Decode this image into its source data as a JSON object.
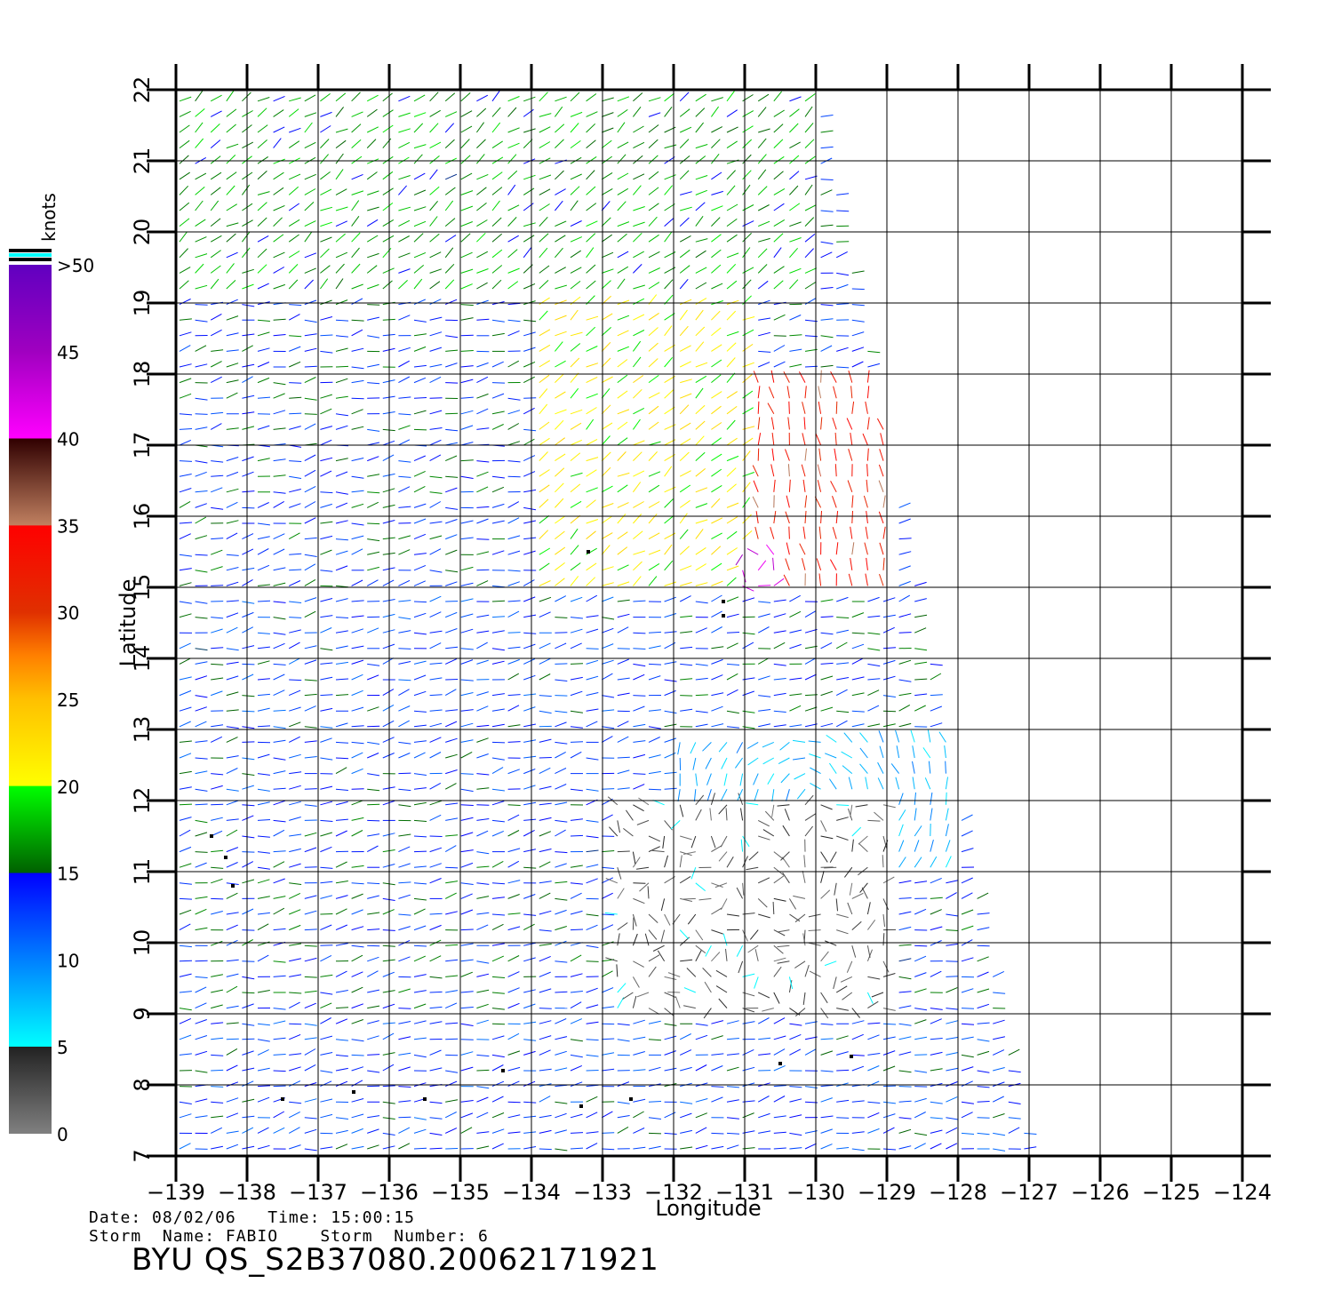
{
  "chart_data": {
    "type": "wind-vector-map",
    "xlabel": "Longitude",
    "ylabel": "Latitude",
    "xlim": [
      -139,
      -124
    ],
    "ylim": [
      7,
      22
    ],
    "x_ticks": [
      -139,
      -138,
      -137,
      -136,
      -135,
      -134,
      -133,
      -132,
      -131,
      -130,
      -129,
      -128,
      -127,
      -126,
      -125,
      -124
    ],
    "y_ticks": [
      7,
      8,
      9,
      10,
      11,
      12,
      13,
      14,
      15,
      16,
      17,
      18,
      19,
      20,
      21,
      22
    ],
    "x_tick_labels": [
      "−139",
      "−138",
      "−137",
      "−136",
      "−135",
      "−134",
      "−133",
      "−132",
      "−131",
      "−130",
      "−129",
      "−128",
      "−127",
      "−126",
      "−125",
      "−124"
    ],
    "y_tick_labels": [
      "7",
      "8",
      "9",
      "10",
      "11",
      "12",
      "13",
      "14",
      "15",
      "16",
      "17",
      "18",
      "19",
      "20",
      "21",
      "22"
    ],
    "grid": true,
    "swath_corners": [
      [
        -139,
        22
      ],
      [
        -130,
        22
      ],
      [
        -127,
        7
      ],
      [
        -139,
        7
      ]
    ],
    "colorbar": {
      "title": "knots",
      "labels": [
        "0",
        "5",
        "10",
        "15",
        "20",
        "25",
        "30",
        "35",
        "40",
        "45",
        ">50"
      ],
      "stops": [
        {
          "value": 0,
          "color": "#808080"
        },
        {
          "value": 5,
          "color": "#222222"
        },
        {
          "value": 5.01,
          "color": "#00ffff"
        },
        {
          "value": 10,
          "color": "#0080ff"
        },
        {
          "value": 15,
          "color": "#0000ff"
        },
        {
          "value": 15.01,
          "color": "#006000"
        },
        {
          "value": 20,
          "color": "#00ff00"
        },
        {
          "value": 20.01,
          "color": "#ffff00"
        },
        {
          "value": 25,
          "color": "#ffc000"
        },
        {
          "value": 27.5,
          "color": "#ff8000"
        },
        {
          "value": 30,
          "color": "#e03000"
        },
        {
          "value": 35,
          "color": "#ff0000"
        },
        {
          "value": 35.01,
          "color": "#c08060"
        },
        {
          "value": 40,
          "color": "#300000"
        },
        {
          "value": 40.01,
          "color": "#ff00ff"
        },
        {
          "value": 45,
          "color": "#a000c0"
        },
        {
          "value": 50,
          "color": "#6000c0"
        }
      ]
    },
    "wind_regions": [
      {
        "lon": [
          -139,
          -130
        ],
        "lat": [
          19,
          22
        ],
        "speed_knots": 17,
        "direction": "NE"
      },
      {
        "lon": [
          -134,
          -131
        ],
        "lat": [
          15,
          19
        ],
        "speed_knots": 21,
        "direction": "NE"
      },
      {
        "lon": [
          -131,
          -129
        ],
        "lat": [
          15,
          18
        ],
        "speed_knots": 33,
        "direction": "N"
      },
      {
        "lon": [
          -131.2,
          -130.5
        ],
        "lat": [
          15,
          15.6
        ],
        "speed_knots": 43,
        "direction": "cyclonic"
      },
      {
        "lon": [
          -139,
          -132
        ],
        "lat": [
          12,
          15
        ],
        "speed_knots": 13,
        "direction": "E"
      },
      {
        "lon": [
          -132,
          -128
        ],
        "lat": [
          11,
          13
        ],
        "speed_knots": 8,
        "direction": "cyclonic"
      },
      {
        "lon": [
          -133,
          -129
        ],
        "lat": [
          9,
          12
        ],
        "speed_knots": 3,
        "direction": "variable"
      },
      {
        "lon": [
          -139,
          -127
        ],
        "lat": [
          7,
          9
        ],
        "speed_knots": 13,
        "direction": "E"
      }
    ],
    "marked_points": [
      [
        -133.2,
        15.5
      ],
      [
        -131.3,
        14.8
      ],
      [
        -131.3,
        14.6
      ],
      [
        -138.5,
        11.5
      ],
      [
        -138.3,
        11.2
      ],
      [
        -138.2,
        10.8
      ],
      [
        -137.5,
        7.8
      ],
      [
        -136.5,
        7.9
      ],
      [
        -135.5,
        7.8
      ],
      [
        -134.4,
        8.2
      ],
      [
        -133.3,
        7.7
      ],
      [
        -132.6,
        7.8
      ],
      [
        -130.5,
        8.3
      ],
      [
        -129.5,
        8.4
      ]
    ]
  },
  "footer": {
    "date_line": "Date: 08/02/06   Time: 15:00:15",
    "storm_line": "Storm  Name: FABIO    Storm  Number: 6",
    "product_id": "BYU  QS_S2B37080.20062171921"
  }
}
